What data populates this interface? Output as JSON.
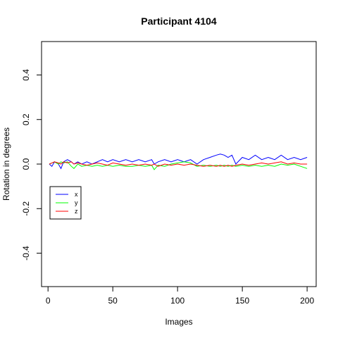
{
  "chart_data": {
    "type": "line",
    "title": "Participant 4104",
    "xlabel": "Images",
    "ylabel": "Rotation in degrees",
    "xlim": [
      -5,
      207
    ],
    "ylim": [
      -0.55,
      0.55
    ],
    "x_ticks": [
      0,
      50,
      100,
      150,
      200
    ],
    "y_ticks": [
      -0.4,
      -0.2,
      0.0,
      0.2,
      0.4
    ],
    "x_tick_labels": [
      "0",
      "50",
      "100",
      "150",
      "200"
    ],
    "y_tick_labels": [
      "-0.4",
      "-0.2",
      "0.0",
      "0.2",
      "0.4"
    ],
    "grid": false,
    "legend_position": "left",
    "colors": {
      "x": "#0000ff",
      "y": "#00ff00",
      "z": "#ff0000"
    },
    "series": [
      {
        "name": "x",
        "color": "#0000ff",
        "x": [
          1,
          3,
          5,
          8,
          10,
          12,
          15,
          18,
          20,
          23,
          26,
          30,
          34,
          38,
          42,
          46,
          50,
          55,
          60,
          65,
          70,
          75,
          80,
          82,
          85,
          90,
          95,
          100,
          105,
          110,
          115,
          120,
          125,
          130,
          133,
          136,
          139,
          142,
          145,
          150,
          155,
          160,
          165,
          170,
          175,
          180,
          185,
          190,
          195,
          200
        ],
        "values": [
          0.0,
          -0.01,
          0.01,
          0.0,
          -0.02,
          0.01,
          0.02,
          0.01,
          0.0,
          0.01,
          0.0,
          0.01,
          0.0,
          0.01,
          0.02,
          0.01,
          0.02,
          0.01,
          0.02,
          0.01,
          0.02,
          0.01,
          0.02,
          0.0,
          0.01,
          0.02,
          0.01,
          0.02,
          0.01,
          0.02,
          0.0,
          0.02,
          0.03,
          0.04,
          0.045,
          0.04,
          0.03,
          0.04,
          0.0,
          0.03,
          0.02,
          0.04,
          0.02,
          0.03,
          0.02,
          0.04,
          0.02,
          0.03,
          0.02,
          0.03
        ]
      },
      {
        "name": "y",
        "color": "#00ff00",
        "x": [
          1,
          3,
          5,
          8,
          10,
          12,
          15,
          18,
          20,
          23,
          26,
          30,
          34,
          38,
          42,
          46,
          50,
          55,
          60,
          65,
          70,
          75,
          80,
          82,
          85,
          90,
          95,
          100,
          105,
          110,
          115,
          120,
          125,
          130,
          133,
          136,
          139,
          142,
          145,
          150,
          155,
          160,
          165,
          170,
          175,
          180,
          185,
          190,
          195,
          200
        ],
        "values": [
          0.0,
          0.005,
          0.01,
          0.0,
          0.01,
          0.005,
          0.01,
          -0.01,
          -0.02,
          0.0,
          -0.01,
          -0.005,
          -0.01,
          -0.005,
          -0.01,
          -0.005,
          -0.01,
          -0.005,
          -0.01,
          -0.01,
          -0.005,
          -0.01,
          -0.005,
          -0.025,
          -0.005,
          -0.01,
          0.0,
          0.005,
          0.01,
          0.005,
          -0.01,
          -0.005,
          -0.01,
          -0.005,
          -0.01,
          -0.005,
          -0.01,
          -0.005,
          -0.01,
          -0.005,
          -0.01,
          -0.005,
          -0.01,
          -0.005,
          -0.01,
          0.0,
          -0.005,
          0.0,
          -0.01,
          -0.02
        ]
      },
      {
        "name": "z",
        "color": "#ff0000",
        "x": [
          1,
          3,
          5,
          8,
          10,
          12,
          15,
          18,
          20,
          23,
          26,
          30,
          34,
          38,
          42,
          46,
          50,
          55,
          60,
          65,
          70,
          75,
          80,
          82,
          85,
          90,
          95,
          100,
          105,
          110,
          115,
          120,
          125,
          130,
          133,
          136,
          139,
          142,
          145,
          150,
          155,
          160,
          165,
          170,
          175,
          180,
          185,
          190,
          195,
          200
        ],
        "values": [
          0.0,
          0.005,
          0.01,
          0.005,
          0.0,
          0.01,
          0.005,
          0.01,
          0.0,
          0.005,
          0.0,
          -0.005,
          0.0,
          0.005,
          0.0,
          -0.005,
          0.005,
          0.0,
          -0.005,
          0.0,
          -0.005,
          0.0,
          -0.005,
          0.0,
          -0.01,
          0.0,
          -0.005,
          0.0,
          -0.005,
          0.0,
          -0.005,
          -0.01,
          -0.005,
          -0.01,
          -0.005,
          -0.01,
          -0.005,
          -0.01,
          -0.005,
          0.0,
          -0.005,
          0.0,
          0.005,
          0.0,
          0.005,
          0.01,
          0.0,
          0.005,
          0.0,
          0.0
        ]
      }
    ]
  }
}
